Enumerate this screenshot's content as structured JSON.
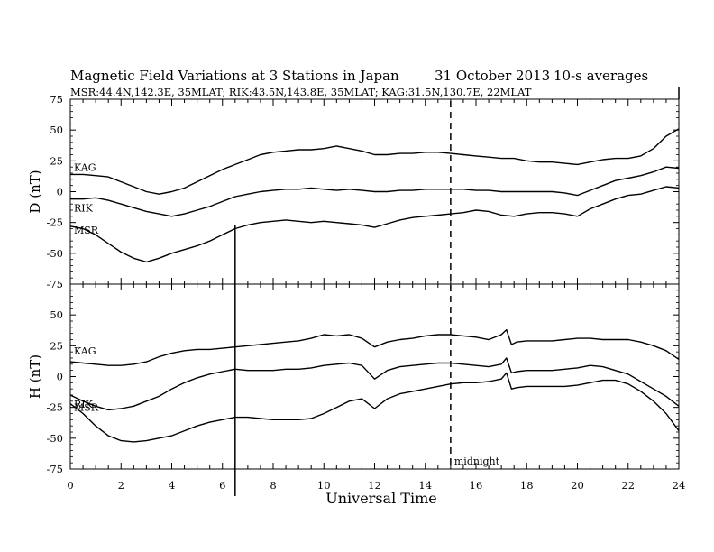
{
  "header": {
    "title": "Magnetic Field Variations at 3 Stations in Japan",
    "date": "31 October 2013",
    "averaging": "10-s averages",
    "stations_line": "MSR:44.4N,142.3E, 35MLAT;   RIK:43.5N,143.8E, 35MLAT;   KAG:31.5N,130.7E, 22MLAT"
  },
  "chart_data": [
    {
      "type": "line",
      "ylabel": "D (nT)",
      "ylim": [
        -75,
        75
      ],
      "yticks": [
        75,
        50,
        25,
        0,
        -25,
        -50,
        -75
      ],
      "xlim": [
        0,
        24
      ],
      "series": [
        {
          "name": "KAG",
          "x": [
            0,
            0.5,
            1,
            1.5,
            2,
            2.5,
            3,
            3.5,
            4,
            4.5,
            5,
            5.5,
            6,
            6.5,
            7,
            7.5,
            8,
            8.5,
            9,
            9.5,
            10,
            10.5,
            11,
            11.5,
            12,
            12.5,
            13,
            13.5,
            14,
            14.5,
            15,
            15.5,
            16,
            16.5,
            17,
            17.5,
            18,
            18.5,
            19,
            19.5,
            20,
            20.5,
            21,
            21.5,
            22,
            22.5,
            23,
            23.5,
            24
          ],
          "y": [
            14,
            14,
            13,
            12,
            8,
            4,
            0,
            -2,
            0,
            3,
            8,
            13,
            18,
            22,
            26,
            30,
            32,
            33,
            34,
            34,
            35,
            37,
            35,
            33,
            30,
            30,
            31,
            31,
            32,
            32,
            31,
            30,
            29,
            28,
            27,
            27,
            25,
            24,
            24,
            23,
            22,
            24,
            26,
            27,
            27,
            29,
            35,
            45,
            51
          ]
        },
        {
          "name": "RIK",
          "x": [
            0,
            0.5,
            1,
            1.5,
            2,
            2.5,
            3,
            3.5,
            4,
            4.5,
            5,
            5.5,
            6,
            6.5,
            7,
            7.5,
            8,
            8.5,
            9,
            9.5,
            10,
            10.5,
            11,
            11.5,
            12,
            12.5,
            13,
            13.5,
            14,
            14.5,
            15,
            15.5,
            16,
            16.5,
            17,
            17.5,
            18,
            18.5,
            19,
            19.5,
            20,
            20.5,
            21,
            21.5,
            22,
            22.5,
            23,
            23.5,
            24
          ],
          "y": [
            -6,
            -6,
            -5,
            -7,
            -10,
            -13,
            -16,
            -18,
            -20,
            -18,
            -15,
            -12,
            -8,
            -4,
            -2,
            0,
            1,
            2,
            2,
            3,
            2,
            1,
            2,
            1,
            0,
            0,
            1,
            1,
            2,
            2,
            2,
            2,
            1,
            1,
            0,
            0,
            0,
            0,
            0,
            -1,
            -3,
            1,
            5,
            9,
            11,
            13,
            16,
            20,
            19
          ]
        },
        {
          "name": "MSR",
          "x": [
            0,
            0.5,
            1,
            1.5,
            2,
            2.5,
            3,
            3.5,
            4,
            4.5,
            5,
            5.5,
            6,
            6.5,
            7,
            7.5,
            8,
            8.5,
            9,
            9.5,
            10,
            10.5,
            11,
            11.5,
            12,
            12.5,
            13,
            13.5,
            14,
            14.5,
            15,
            15.5,
            16,
            16.5,
            17,
            17.5,
            18,
            18.5,
            19,
            19.5,
            20,
            20.5,
            21,
            21.5,
            22,
            22.5,
            23,
            23.5,
            24
          ],
          "y": [
            -28,
            -30,
            -35,
            -42,
            -49,
            -54,
            -57,
            -54,
            -50,
            -47,
            -44,
            -40,
            -35,
            -30,
            -27,
            -25,
            -24,
            -23,
            -24,
            -25,
            -24,
            -25,
            -26,
            -27,
            -29,
            -26,
            -23,
            -21,
            -20,
            -19,
            -18,
            -17,
            -15,
            -16,
            -19,
            -20,
            -18,
            -17,
            -17,
            -18,
            -20,
            -14,
            -10,
            -6,
            -3,
            -2,
            1,
            4,
            3
          ]
        }
      ]
    },
    {
      "type": "line",
      "ylabel": "H (nT)",
      "ylim": [
        -75,
        75
      ],
      "yticks": [
        75,
        50,
        25,
        0,
        -25,
        -50,
        -75
      ],
      "xlim": [
        0,
        24
      ],
      "xlabel": "Universal Time",
      "xticks": [
        0,
        2,
        4,
        6,
        8,
        10,
        12,
        14,
        16,
        18,
        20,
        22,
        24
      ],
      "series": [
        {
          "name": "KAG",
          "x": [
            0,
            0.5,
            1,
            1.5,
            2,
            2.5,
            3,
            3.5,
            4,
            4.5,
            5,
            5.5,
            6,
            6.5,
            7,
            7.5,
            8,
            8.5,
            9,
            9.5,
            10,
            10.5,
            11,
            11.5,
            12,
            12.5,
            13,
            13.5,
            14,
            14.5,
            15,
            15.5,
            16,
            16.5,
            17,
            17.2,
            17.4,
            17.6,
            18,
            18.5,
            19,
            19.5,
            20,
            20.5,
            21,
            21.5,
            22,
            22.5,
            23,
            23.5,
            24
          ],
          "y": [
            12,
            11,
            10,
            9,
            9,
            10,
            12,
            16,
            19,
            21,
            22,
            22,
            23,
            24,
            25,
            26,
            27,
            28,
            29,
            31,
            34,
            33,
            34,
            31,
            24,
            28,
            30,
            31,
            33,
            34,
            34,
            33,
            32,
            30,
            34,
            38,
            26,
            28,
            29,
            29,
            29,
            30,
            31,
            31,
            30,
            30,
            30,
            28,
            25,
            21,
            14
          ]
        },
        {
          "name": "RIK",
          "x": [
            0,
            0.5,
            1,
            1.5,
            2,
            2.5,
            3,
            3.5,
            4,
            4.5,
            5,
            5.5,
            6,
            6.5,
            7,
            7.5,
            8,
            8.5,
            9,
            9.5,
            10,
            10.5,
            11,
            11.5,
            12,
            12.5,
            13,
            13.5,
            14,
            14.5,
            15,
            15.5,
            16,
            16.5,
            17,
            17.2,
            17.4,
            17.6,
            18,
            18.5,
            19,
            19.5,
            20,
            20.5,
            21,
            21.5,
            22,
            22.5,
            23,
            23.5,
            24
          ],
          "y": [
            -15,
            -20,
            -24,
            -27,
            -26,
            -24,
            -20,
            -16,
            -10,
            -5,
            -1,
            2,
            4,
            6,
            5,
            5,
            5,
            6,
            6,
            7,
            9,
            10,
            11,
            9,
            -2,
            5,
            8,
            9,
            10,
            11,
            11,
            10,
            9,
            8,
            10,
            15,
            3,
            4,
            5,
            5,
            5,
            6,
            7,
            9,
            8,
            5,
            2,
            -4,
            -10,
            -16,
            -24
          ]
        },
        {
          "name": "MSR",
          "x": [
            0,
            0.5,
            1,
            1.5,
            2,
            2.5,
            3,
            3.5,
            4,
            4.5,
            5,
            5.5,
            6,
            6.5,
            7,
            7.5,
            8,
            8.5,
            9,
            9.5,
            10,
            10.5,
            11,
            11.5,
            12,
            12.5,
            13,
            13.5,
            14,
            14.5,
            15,
            15.5,
            16,
            16.5,
            17,
            17.2,
            17.4,
            17.6,
            18,
            18.5,
            19,
            19.5,
            20,
            20.5,
            21,
            21.5,
            22,
            22.5,
            23,
            23.5,
            24
          ],
          "y": [
            -22,
            -30,
            -40,
            -48,
            -52,
            -53,
            -52,
            -50,
            -48,
            -44,
            -40,
            -37,
            -35,
            -33,
            -33,
            -34,
            -35,
            -35,
            -35,
            -34,
            -30,
            -25,
            -20,
            -18,
            -26,
            -18,
            -14,
            -12,
            -10,
            -8,
            -6,
            -5,
            -5,
            -4,
            -2,
            3,
            -10,
            -9,
            -8,
            -8,
            -8,
            -8,
            -7,
            -5,
            -3,
            -3,
            -6,
            -12,
            -20,
            -30,
            -44
          ]
        }
      ]
    }
  ],
  "markers": {
    "storm_time": 6.5,
    "midnight_time": 15,
    "midnight_label": "midnight"
  },
  "colors": {
    "line": "#000000",
    "background": "#ffffff"
  }
}
